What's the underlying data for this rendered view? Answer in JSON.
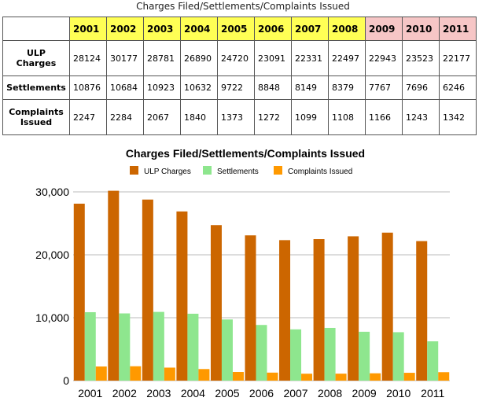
{
  "table": {
    "caption": "Charges Filed/Settlements/Complaints Issued",
    "columns": [
      "2001",
      "2002",
      "2003",
      "2004",
      "2005",
      "2006",
      "2007",
      "2008",
      "2009",
      "2010",
      "2011"
    ],
    "rows": [
      {
        "label": "ULP Charges",
        "values": [
          28124,
          30177,
          28781,
          26890,
          24720,
          23091,
          22331,
          22497,
          22943,
          23523,
          22177
        ]
      },
      {
        "label": "Settlements",
        "values": [
          10876,
          10684,
          10923,
          10632,
          9722,
          8848,
          8149,
          8379,
          7767,
          7696,
          6246
        ]
      },
      {
        "label": "Complaints Issued",
        "values": [
          2247,
          2284,
          2067,
          1840,
          1373,
          1272,
          1099,
          1108,
          1166,
          1243,
          1342
        ]
      }
    ]
  },
  "chart_data": {
    "type": "bar",
    "title": "Charges Filed/Settlements/Complaints Issued",
    "categories": [
      "2001",
      "2002",
      "2003",
      "2004",
      "2005",
      "2006",
      "2007",
      "2008",
      "2009",
      "2010",
      "2011"
    ],
    "series": [
      {
        "name": "ULP Charges",
        "color": "#cc6600",
        "values": [
          28124,
          30177,
          28781,
          26890,
          24720,
          23091,
          22331,
          22497,
          22943,
          23523,
          22177
        ]
      },
      {
        "name": "Settlements",
        "color": "#8ee68e",
        "values": [
          10876,
          10684,
          10923,
          10632,
          9722,
          8848,
          8149,
          8379,
          7767,
          7696,
          6246
        ]
      },
      {
        "name": "Complaints Issued",
        "color": "#ff9900",
        "values": [
          2247,
          2284,
          2067,
          1840,
          1373,
          1272,
          1099,
          1108,
          1166,
          1243,
          1342
        ]
      }
    ],
    "ylim": [
      0,
      30000
    ],
    "yticks": [
      0,
      {
        "value": 10000,
        "label": "10,000"
      },
      {
        "value": 20000,
        "label": "20,000"
      },
      {
        "value": 30000,
        "label": "30,000"
      }
    ],
    "grid": true,
    "legend": "top"
  }
}
